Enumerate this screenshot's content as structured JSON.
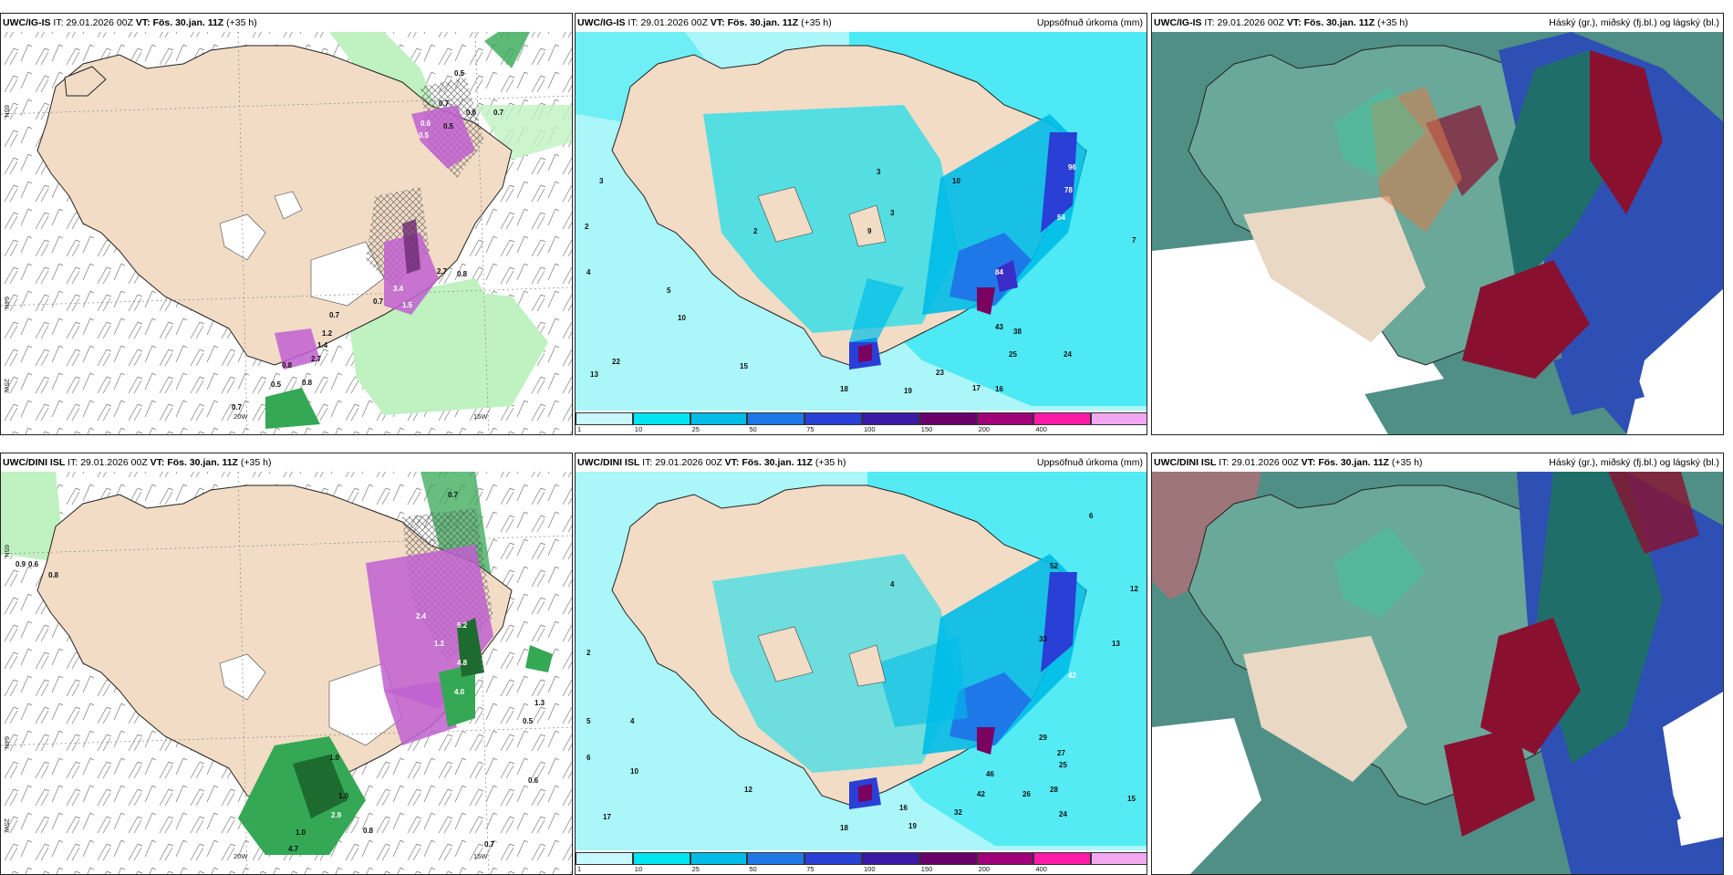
{
  "panels": [
    {
      "model": "UWC/IG-IS",
      "it_label": "IT:",
      "it": "29.01.2026 00Z",
      "vt_label": "VT:",
      "vt": "Fös. 30.jan. 11Z",
      "lead": "(+35 h)",
      "right_title": ""
    },
    {
      "model": "UWC/IG-IS",
      "it_label": "IT:",
      "it": "29.01.2026 00Z",
      "vt_label": "VT:",
      "vt": "Fös. 30.jan. 11Z",
      "lead": "(+35 h)",
      "right_title": "Uppsöfnuð úrkoma (mm)"
    },
    {
      "model": "UWC/IG-IS",
      "it_label": "IT:",
      "it": "29.01.2026 00Z",
      "vt_label": "VT:",
      "vt": "Fös. 30.jan. 11Z",
      "lead": "(+35 h)",
      "right_title": "Háský (gr.), miðský (fj.bl.) og lágský (bl.)"
    },
    {
      "model": "UWC/DINI ISL",
      "it_label": "IT:",
      "it": "29.01.2026 00Z",
      "vt_label": "VT:",
      "vt": "Fös. 30.jan. 11Z",
      "lead": "(+35 h)",
      "right_title": ""
    },
    {
      "model": "UWC/DINI ISL",
      "it_label": "IT:",
      "it": "29.01.2026 00Z",
      "vt_label": "VT:",
      "vt": "Fös. 30.jan. 11Z",
      "lead": "(+35 h)",
      "right_title": "Uppsöfnuð úrkoma (mm)"
    },
    {
      "model": "UWC/DINI ISL",
      "it_label": "IT:",
      "it": "29.01.2026 00Z",
      "vt_label": "VT:",
      "vt": "Fös. 30.jan. 11Z",
      "lead": "(+35 h)",
      "right_title": "Háský (gr.), miðský (fj.bl.) og lágský (bl.)"
    }
  ],
  "grid_labels": {
    "lon20": "20W",
    "lon15": "15W",
    "lat65": "65N",
    "lat64": "64N",
    "lon25": "25W"
  },
  "precip_legend": {
    "labels": [
      "1",
      "10",
      "25",
      "50",
      "75",
      "100",
      "150",
      "200",
      "400"
    ],
    "colors": [
      "#c8f8ff",
      "#00e6f0",
      "#00bde8",
      "#1f78e8",
      "#2a3fd6",
      "#3a1aa6",
      "#6a006a",
      "#a0007a",
      "#ff1aa8",
      "#f2a8f0"
    ]
  },
  "colors": {
    "land": "#f2dcc6",
    "sea_precip": "#aaf6f8",
    "precip_mid": "#00dff0",
    "precip_deep": "#3a2dc8",
    "precip_core": "#7a0060",
    "snow_purple": "#c060d0",
    "rain_green": "#34a854",
    "light_green": "#bff2c0",
    "cloud_high": "#1f8a7a",
    "cloud_mid": "#2e4fb4",
    "cloud_low": "#8a1030"
  },
  "values": {
    "p1": [
      "0.5",
      "0.7",
      "0.6",
      "0.7",
      "0.5",
      "0.6",
      "0.5",
      "0.8",
      "0.7",
      "1.2",
      "1.4",
      "2.7",
      "0.5",
      "0.8",
      "0.7",
      "0.7",
      "3.4",
      "1.5",
      "2.7",
      "0.8"
    ],
    "p2": [
      "2",
      "3",
      "4",
      "5",
      "10",
      "13",
      "22",
      "15",
      "16",
      "18",
      "19",
      "23",
      "17",
      "25",
      "24",
      "38",
      "43",
      "54",
      "78",
      "96",
      "84",
      "2",
      "9",
      "3",
      "3",
      "7",
      "10"
    ],
    "p4": [
      "0.9",
      "0.6",
      "0.8",
      "0.7",
      "1.3",
      "0.5",
      "0.6",
      "1.0",
      "5.5",
      "2.9",
      "1.0",
      "4.7",
      "0.8",
      "0.7",
      "1.0",
      "2.4",
      "5.2",
      "4.8",
      "4.0",
      "1.2"
    ],
    "p5": [
      "2",
      "4",
      "5",
      "6",
      "10",
      "12",
      "17",
      "18",
      "16",
      "19",
      "32",
      "42",
      "46",
      "26",
      "28",
      "24",
      "15",
      "29",
      "27",
      "25",
      "33",
      "42",
      "52",
      "4",
      "6",
      "12",
      "13"
    ]
  }
}
